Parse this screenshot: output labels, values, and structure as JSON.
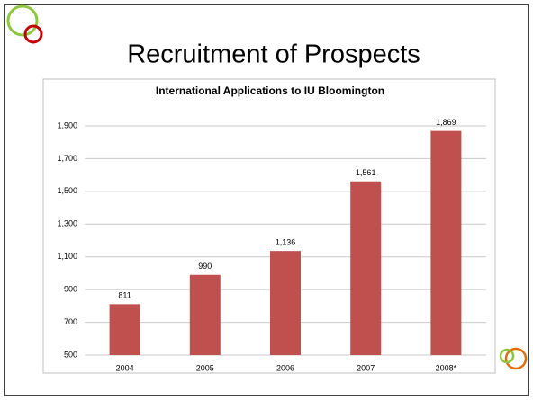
{
  "slide_title": "Recruitment of Prospects",
  "chart_data": {
    "type": "bar",
    "title": "International Applications to IU Bloomington",
    "categories": [
      "2004",
      "2005",
      "2006",
      "2007",
      "2008*"
    ],
    "values": [
      811,
      990,
      1136,
      1561,
      1869
    ],
    "value_labels": [
      "811",
      "990",
      "1,136",
      "1,561",
      "1,869"
    ],
    "color": "#c0504d",
    "ylim": [
      500,
      1950
    ],
    "yticks": [
      {
        "value": 500,
        "label": "500"
      },
      {
        "value": 700,
        "label": "700"
      },
      {
        "value": 900,
        "label": "900"
      },
      {
        "value": 1100,
        "label": "1,100"
      },
      {
        "value": 1300,
        "label": "1,300"
      },
      {
        "value": 1500,
        "label": "1,500"
      },
      {
        "value": 1700,
        "label": "1,700"
      },
      {
        "value": 1900,
        "label": "1,900"
      }
    ],
    "grid": true
  }
}
